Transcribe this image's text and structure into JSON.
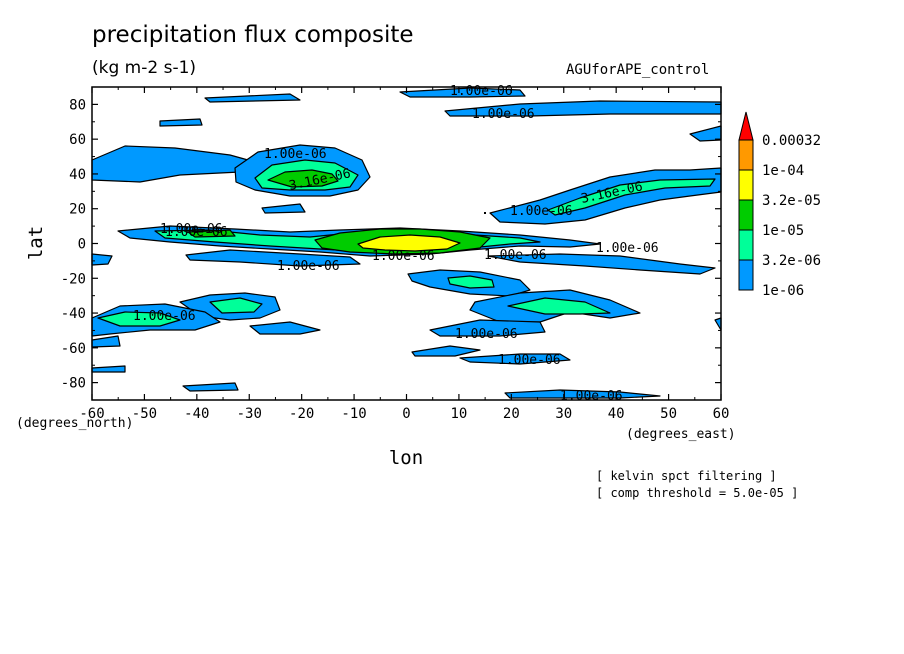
{
  "chart_data": {
    "type": "heatmap",
    "subtype": "filled-contour",
    "title": "precipitation flux composite",
    "subtitle": "(kg m-2 s-1)",
    "run_label": "AGUforAPE_control",
    "xlabel": "lon",
    "xunits": "(degrees_east)",
    "ylabel": "lat",
    "yunits": "(degrees_north)",
    "xlim": [
      -60,
      60
    ],
    "ylim": [
      -90,
      90
    ],
    "xticks": [
      "-60",
      "-50",
      "-40",
      "-30",
      "-20",
      "-10",
      "0",
      "10",
      "20",
      "30",
      "40",
      "50",
      "60"
    ],
    "yticks": [
      "80",
      "60",
      "40",
      "20",
      "0",
      "-20",
      "-40",
      "-60",
      "-80"
    ],
    "legend": {
      "placement": "right",
      "levels": [
        "0.00032",
        "1e-04",
        "3.2e-05",
        "1e-05",
        "3.2e-06",
        "1e-06"
      ],
      "colors": [
        "#ff0000",
        "#ff9900",
        "#ffff00",
        "#00cc00",
        "#00ff99",
        "#0099ff"
      ]
    },
    "contour_labels": [
      "1.00e-06",
      "1.00e-06",
      "1.00e-06",
      "3.16e-06",
      "3.16e-06",
      "1.00e-06",
      "1.00e-06",
      "1.00e-06",
      "1.00e-06",
      "1.00e-06",
      "1.00e-06",
      "1.00e-06",
      "1.00e-06",
      "1.00e-06",
      "1.00e-06",
      "1.00e-06"
    ],
    "notes": [
      "[ kelvin spct filtering ]",
      "[ comp threshold = 5.0e-05 ]"
    ]
  }
}
